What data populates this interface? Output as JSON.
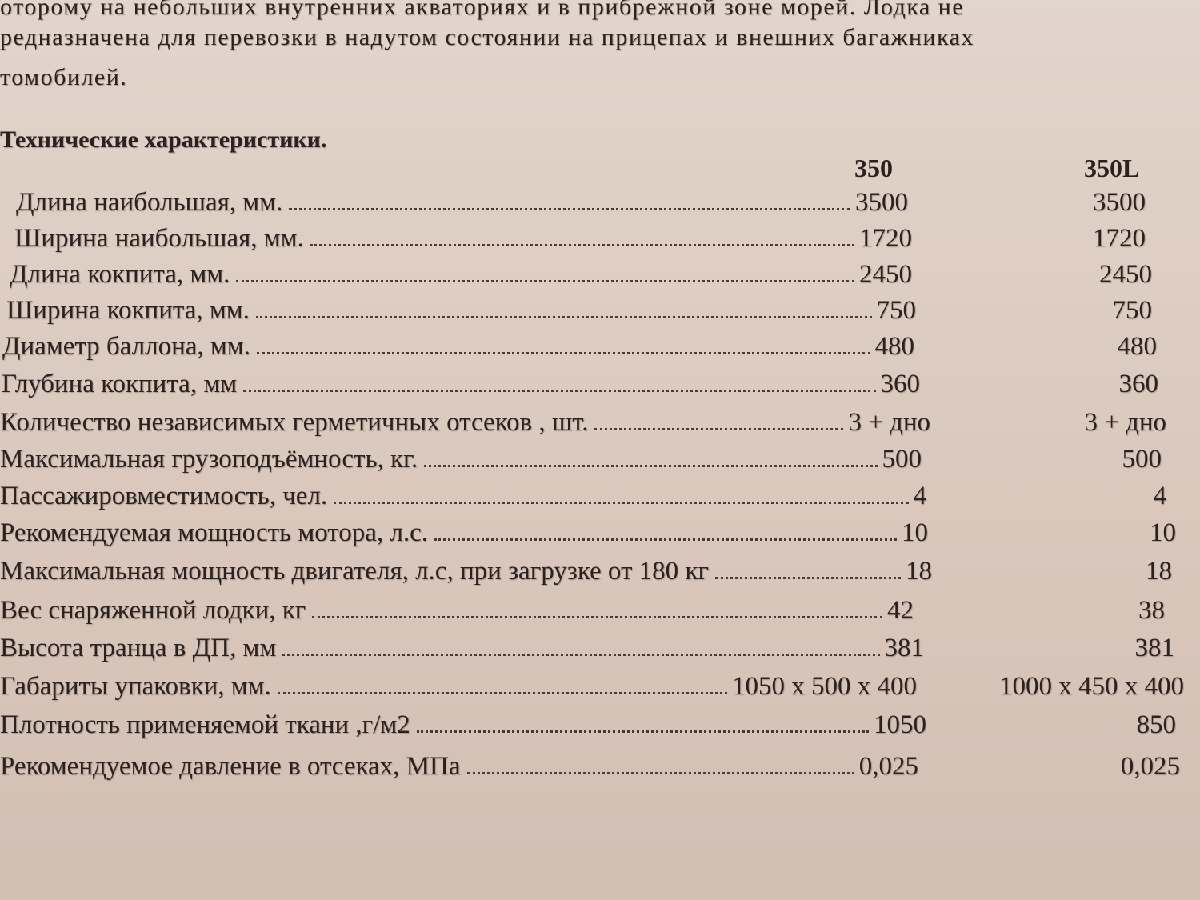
{
  "intro_lines": [
    "оторому на небольших внутренних  акваториях и в прибрежной зоне морей. Лодка не",
    "редназначена для перевозки в надутом состоянии на прицепах и внешних багажниках",
    "томобилей."
  ],
  "section_title": "Технические характеристики.",
  "columns": [
    "350",
    "350L"
  ],
  "rows": [
    {
      "label": "Длина наибольшая, мм.",
      "v350": "3500",
      "v350L": "3500"
    },
    {
      "label": "Ширина наибольшая, мм.",
      "v350": "1720",
      "v350L": "1720"
    },
    {
      "label": "Длина кокпита, мм.",
      "v350": "2450",
      "v350L": "2450"
    },
    {
      "label": "Ширина кокпита, мм.",
      "v350": "750",
      "v350L": "750"
    },
    {
      "label": "Диаметр баллона, мм.",
      "v350": "480",
      "v350L": "480"
    },
    {
      "label": "Глубина кокпита, мм",
      "v350": "360",
      "v350L": "360"
    },
    {
      "label": "Количество независимых герметичных отсеков , шт.",
      "v350": "3 + дно",
      "v350L": "3 + дно"
    },
    {
      "label": "Максимальная грузоподъёмность, кг.",
      "v350": "500",
      "v350L": "500"
    },
    {
      "label": "Пассажировместимость, чел.",
      "v350": "4",
      "v350L": "4"
    },
    {
      "label": "Рекомендуемая мощность мотора, л.с.",
      "v350": "10",
      "v350L": "10"
    },
    {
      "label": "Максимальная мощность двигателя, л.с, при загрузке от 180 кг",
      "v350": "18",
      "v350L": "18"
    },
    {
      "label": "Вес снаряженной лодки, кг",
      "v350": "42",
      "v350L": "38"
    },
    {
      "label": "Высота транца в ДП, мм",
      "v350": "381",
      "v350L": "381"
    },
    {
      "label": "Габариты упаковки, мм.",
      "v350": "1050 x 500 x 400",
      "v350L": "1000 x 450 x 400"
    },
    {
      "label": "Плотность применяемой ткани ,г/м2",
      "v350": "1050",
      "v350L": "850"
    },
    {
      "label": "Рекомендуемое давление в отсеках, МПа",
      "v350": "0,025",
      "v350L": "0,025"
    }
  ]
}
